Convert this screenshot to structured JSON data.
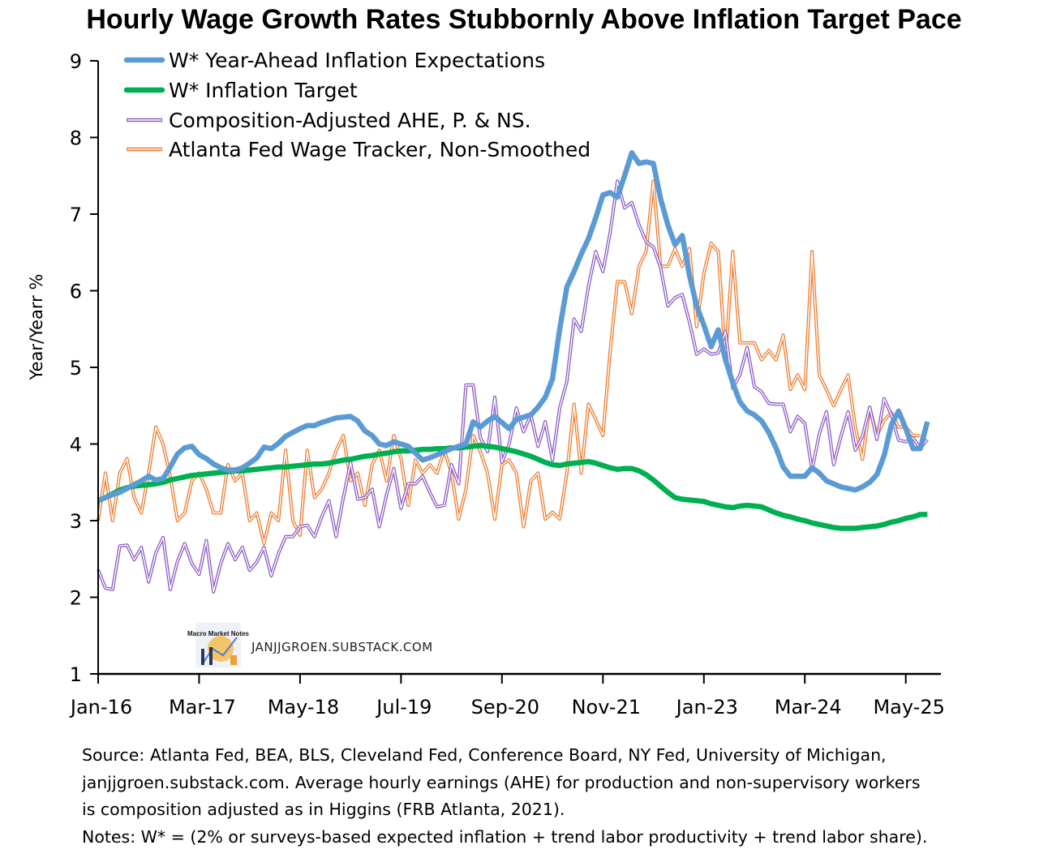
{
  "chart_data": {
    "type": "line",
    "title": "Hourly Wage Growth Rates Stubbornly Above Inflation Target Pace",
    "ylabel": "Year/Yearr %",
    "xlabel": "",
    "ylim": [
      1,
      9
    ],
    "yticks": [
      "1",
      "2",
      "3",
      "4",
      "5",
      "6",
      "7",
      "8",
      "9"
    ],
    "x_start": "Jan-16",
    "x_frequency": "monthly",
    "xticks": [
      {
        "label": "Jan-16",
        "month_index": 0
      },
      {
        "label": "Mar-17",
        "month_index": 14
      },
      {
        "label": "May-18",
        "month_index": 28
      },
      {
        "label": "Jul-19",
        "month_index": 42
      },
      {
        "label": "Sep-20",
        "month_index": 56
      },
      {
        "label": "Nov-21",
        "month_index": 70
      },
      {
        "label": "Jan-23",
        "month_index": 84
      },
      {
        "label": "Mar-24",
        "month_index": 98
      },
      {
        "label": "May-25",
        "month_index": 112
      }
    ],
    "grid": false,
    "legend_position": "top-left",
    "series": [
      {
        "name": "W* Year-Ahead Inflation Expectations",
        "color": "#5b9bd5",
        "style": "thick",
        "values": [
          3.26,
          3.3,
          3.34,
          3.37,
          3.42,
          3.47,
          3.52,
          3.58,
          3.53,
          3.55,
          3.7,
          3.87,
          3.95,
          3.97,
          3.86,
          3.81,
          3.74,
          3.69,
          3.66,
          3.66,
          3.69,
          3.75,
          3.82,
          3.96,
          3.94,
          4.01,
          4.1,
          4.15,
          4.2,
          4.24,
          4.24,
          4.28,
          4.31,
          4.34,
          4.35,
          4.36,
          4.3,
          4.17,
          4.11,
          4.0,
          3.98,
          4.03,
          4.0,
          3.97,
          3.88,
          3.79,
          3.82,
          3.86,
          3.9,
          3.94,
          3.97,
          4.0,
          4.29,
          4.22,
          4.3,
          4.36,
          4.28,
          4.2,
          4.32,
          4.35,
          4.38,
          4.48,
          4.61,
          4.85,
          5.5,
          6.05,
          6.25,
          6.48,
          6.68,
          6.95,
          7.25,
          7.28,
          7.22,
          7.5,
          7.8,
          7.66,
          7.68,
          7.66,
          7.2,
          6.86,
          6.6,
          6.72,
          6.2,
          5.8,
          5.55,
          5.27,
          5.49,
          5.1,
          4.8,
          4.55,
          4.43,
          4.38,
          4.3,
          4.15,
          3.95,
          3.7,
          3.58,
          3.58,
          3.58,
          3.69,
          3.62,
          3.52,
          3.48,
          3.44,
          3.42,
          3.4,
          3.44,
          3.5,
          3.6,
          3.85,
          4.25,
          4.43,
          4.2,
          3.94,
          3.94,
          4.29
        ]
      },
      {
        "name": "W* Inflation Target",
        "color": "#00b050",
        "style": "thick",
        "values": [
          3.26,
          3.3,
          3.35,
          3.4,
          3.43,
          3.45,
          3.46,
          3.47,
          3.48,
          3.5,
          3.53,
          3.55,
          3.57,
          3.59,
          3.6,
          3.61,
          3.62,
          3.63,
          3.64,
          3.65,
          3.65,
          3.66,
          3.67,
          3.68,
          3.69,
          3.7,
          3.7,
          3.71,
          3.72,
          3.73,
          3.74,
          3.74,
          3.75,
          3.77,
          3.79,
          3.8,
          3.82,
          3.84,
          3.85,
          3.87,
          3.88,
          3.9,
          3.91,
          3.91,
          3.92,
          3.93,
          3.93,
          3.94,
          3.94,
          3.95,
          3.95,
          3.96,
          3.97,
          3.98,
          3.97,
          3.96,
          3.94,
          3.92,
          3.9,
          3.87,
          3.84,
          3.8,
          3.76,
          3.73,
          3.72,
          3.74,
          3.75,
          3.76,
          3.77,
          3.75,
          3.72,
          3.69,
          3.67,
          3.68,
          3.68,
          3.65,
          3.6,
          3.53,
          3.45,
          3.37,
          3.3,
          3.28,
          3.27,
          3.26,
          3.25,
          3.22,
          3.2,
          3.18,
          3.17,
          3.19,
          3.2,
          3.19,
          3.18,
          3.14,
          3.1,
          3.07,
          3.05,
          3.02,
          3.0,
          2.97,
          2.95,
          2.93,
          2.91,
          2.9,
          2.9,
          2.9,
          2.91,
          2.92,
          2.93,
          2.95,
          2.98,
          3.0,
          3.03,
          3.05,
          3.08,
          3.08
        ]
      },
      {
        "name": "Composition-Adjusted AHE, P. & NS.",
        "color": "#8e5cc4",
        "style": "double",
        "values": [
          2.36,
          2.12,
          2.1,
          2.67,
          2.68,
          2.49,
          2.65,
          2.2,
          2.58,
          2.78,
          2.1,
          2.47,
          2.7,
          2.44,
          2.3,
          2.74,
          2.07,
          2.44,
          2.7,
          2.49,
          2.65,
          2.35,
          2.46,
          2.65,
          2.28,
          2.57,
          2.79,
          2.79,
          2.92,
          2.94,
          2.79,
          3.05,
          3.26,
          2.79,
          3.3,
          3.76,
          3.28,
          3.3,
          3.41,
          2.92,
          3.34,
          3.68,
          3.16,
          3.48,
          3.48,
          3.58,
          3.37,
          3.18,
          3.2,
          3.73,
          3.48,
          4.77,
          4.77,
          4.08,
          3.9,
          4.61,
          3.76,
          4.0,
          4.47,
          4.16,
          4.38,
          3.97,
          4.29,
          3.79,
          4.47,
          4.82,
          5.63,
          5.47,
          6.06,
          6.51,
          6.25,
          6.76,
          7.43,
          7.08,
          7.15,
          6.86,
          6.64,
          6.57,
          6.3,
          5.8,
          5.91,
          5.95,
          5.59,
          5.17,
          5.24,
          5.17,
          5.19,
          5.47,
          4.73,
          4.9,
          5.26,
          4.75,
          4.68,
          4.53,
          4.52,
          4.52,
          4.16,
          4.36,
          4.27,
          3.66,
          4.13,
          4.42,
          3.73,
          4.1,
          4.42,
          3.92,
          4.1,
          4.48,
          4.06,
          4.59,
          4.38,
          4.05,
          4.03,
          4.08,
          3.94,
          4.06
        ]
      },
      {
        "name": "Atlanta Fed Wage Tracker, Non-Smoothed",
        "color": "#ed7d31",
        "style": "double",
        "values": [
          3.0,
          3.62,
          3.0,
          3.62,
          3.81,
          3.3,
          3.1,
          3.62,
          4.22,
          4.0,
          3.58,
          3.0,
          3.1,
          3.52,
          3.62,
          3.41,
          3.1,
          3.1,
          3.73,
          3.52,
          3.62,
          3.0,
          3.1,
          2.7,
          3.1,
          3.0,
          3.92,
          3.0,
          2.81,
          3.92,
          3.3,
          3.41,
          3.62,
          3.92,
          4.11,
          3.52,
          3.62,
          3.2,
          3.73,
          3.92,
          3.52,
          4.11,
          3.81,
          3.2,
          3.79,
          3.62,
          3.73,
          3.62,
          3.92,
          3.62,
          3.02,
          3.41,
          4.11,
          3.9,
          3.62,
          3.02,
          3.73,
          3.79,
          3.62,
          2.92,
          3.52,
          3.62,
          3.02,
          3.11,
          3.02,
          3.62,
          4.52,
          3.62,
          4.52,
          4.32,
          4.11,
          5.21,
          6.12,
          6.12,
          5.7,
          6.32,
          6.51,
          7.43,
          6.32,
          6.32,
          6.55,
          6.32,
          6.55,
          5.53,
          6.23,
          6.62,
          6.51,
          5.1,
          6.51,
          5.32,
          5.32,
          5.32,
          5.1,
          5.22,
          5.1,
          5.42,
          4.71,
          4.9,
          4.71,
          6.51,
          4.9,
          4.71,
          4.5,
          4.71,
          4.9,
          4.22,
          3.8,
          4.48,
          4.11,
          4.31,
          4.41,
          4.22,
          4.22,
          4.11,
          4.11
        ]
      }
    ]
  },
  "watermark": {
    "logo_text": "Macro Market Notes",
    "site": "JANJJGROEN.SUBSTACK.COM"
  },
  "footnote": {
    "lines": [
      "Source: Atlanta Fed, BEA, BLS, Cleveland Fed, Conference Board, NY Fed, University of Michigan,",
      "janjjgroen.substack.com. Average hourly earnings (AHE) for production and non-supervisory workers",
      "is composition adjusted as in Higgins (FRB Atlanta, 2021).",
      "Notes: W* = (2% or surveys-based expected inflation + trend labor productivity + trend labor share)."
    ]
  }
}
